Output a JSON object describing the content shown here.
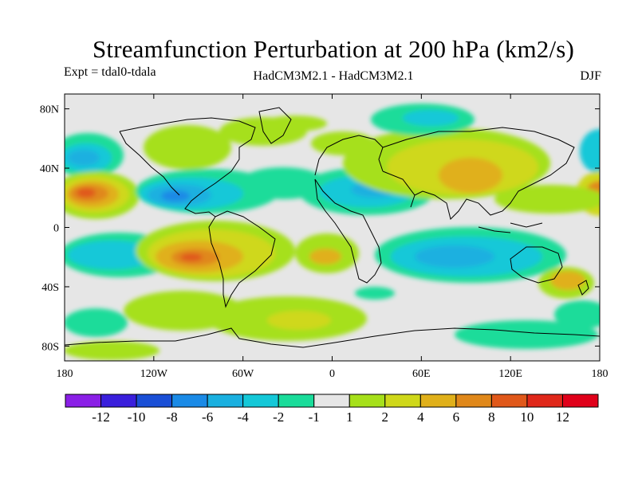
{
  "title": "Streamfunction Perturbation at 200 hPa (km2/s)",
  "left_label": "Expt = tdal0-tdala",
  "center_label": "HadCM3M2.1 - HadCM3M2.1",
  "right_label": "DJF",
  "map": {
    "lon_range": [
      -180,
      180
    ],
    "lat_range": [
      -90,
      90
    ],
    "x_ticks": [
      {
        "lon": -180,
        "label": "180"
      },
      {
        "lon": -120,
        "label": "120W"
      },
      {
        "lon": -60,
        "label": "60W"
      },
      {
        "lon": 0,
        "label": "0"
      },
      {
        "lon": 60,
        "label": "60E"
      },
      {
        "lon": 120,
        "label": "120E"
      },
      {
        "lon": 180,
        "label": "180"
      }
    ],
    "y_ticks": [
      {
        "lat": 80,
        "label": "80N"
      },
      {
        "lat": 40,
        "label": "40N"
      },
      {
        "lat": 0,
        "label": "0"
      },
      {
        "lat": -40,
        "label": "40S"
      },
      {
        "lat": -80,
        "label": "80S"
      }
    ],
    "background_color": "#e6e6e6"
  },
  "colorbar": {
    "labels": [
      "-12",
      "-10",
      "-8",
      "-6",
      "-4",
      "-2",
      "-1",
      "1",
      "2",
      "4",
      "6",
      "8",
      "10",
      "12"
    ],
    "colors": [
      "#8a1fe6",
      "#3a1fdc",
      "#1a4fd6",
      "#1a8ae6",
      "#1ab0e0",
      "#14c8d8",
      "#1adc9a",
      "#e6e6e6",
      "#a6e01a",
      "#cfd81a",
      "#e0b01a",
      "#e0881a",
      "#e0581a",
      "#e0281a",
      "#e0001a"
    ]
  }
}
